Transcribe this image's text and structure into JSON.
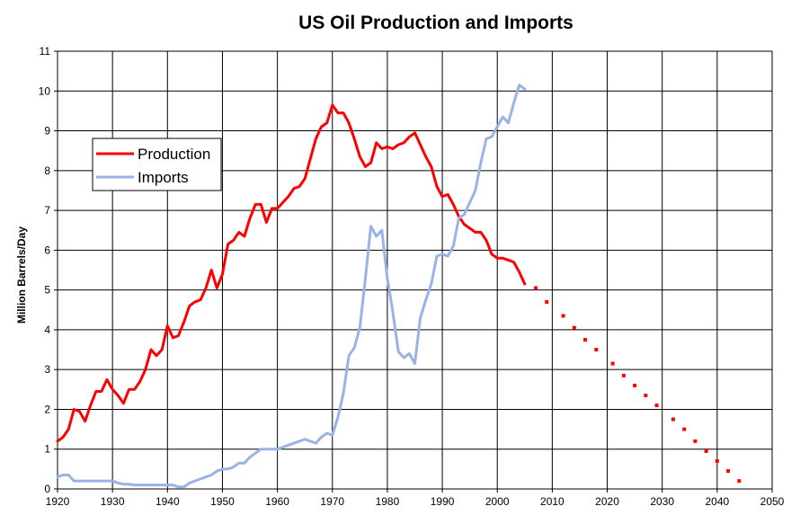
{
  "chart_data": {
    "type": "line",
    "title": "US Oil Production and Imports",
    "xlabel": "",
    "ylabel": "Million Barrels/Day",
    "xlim": [
      1920,
      2050
    ],
    "ylim": [
      0,
      11
    ],
    "xticks": [
      1920,
      1930,
      1940,
      1950,
      1960,
      1970,
      1980,
      1990,
      2000,
      2010,
      2020,
      2030,
      2040,
      2050
    ],
    "yticks": [
      0,
      1,
      2,
      3,
      4,
      5,
      6,
      7,
      8,
      9,
      10,
      11
    ],
    "grid": true,
    "legend_position": "upper-left",
    "series": [
      {
        "name": "Production",
        "color": "#ff0000",
        "style": "solid",
        "x": [
          1920,
          1921,
          1922,
          1923,
          1924,
          1925,
          1926,
          1927,
          1928,
          1929,
          1930,
          1931,
          1932,
          1933,
          1934,
          1935,
          1936,
          1937,
          1938,
          1939,
          1940,
          1941,
          1942,
          1943,
          1944,
          1945,
          1946,
          1947,
          1948,
          1949,
          1950,
          1951,
          1952,
          1953,
          1954,
          1955,
          1956,
          1957,
          1958,
          1959,
          1960,
          1961,
          1962,
          1963,
          1964,
          1965,
          1966,
          1967,
          1968,
          1969,
          1970,
          1971,
          1972,
          1973,
          1974,
          1975,
          1976,
          1977,
          1978,
          1979,
          1980,
          1981,
          1982,
          1983,
          1984,
          1985,
          1986,
          1987,
          1988,
          1989,
          1990,
          1991,
          1992,
          1993,
          1994,
          1995,
          1996,
          1997,
          1998,
          1999,
          2000,
          2001,
          2002,
          2003,
          2004,
          2005
        ],
        "values": [
          1.2,
          1.3,
          1.5,
          2.0,
          1.95,
          1.7,
          2.1,
          2.45,
          2.45,
          2.75,
          2.5,
          2.35,
          2.15,
          2.5,
          2.5,
          2.7,
          3.0,
          3.5,
          3.35,
          3.5,
          4.1,
          3.8,
          3.85,
          4.2,
          4.6,
          4.7,
          4.75,
          5.05,
          5.5,
          5.05,
          5.4,
          6.15,
          6.25,
          6.45,
          6.35,
          6.8,
          7.15,
          7.15,
          6.7,
          7.05,
          7.05,
          7.2,
          7.35,
          7.55,
          7.6,
          7.8,
          8.3,
          8.8,
          9.1,
          9.2,
          9.65,
          9.45,
          9.45,
          9.2,
          8.8,
          8.35,
          8.1,
          8.2,
          8.7,
          8.55,
          8.6,
          8.55,
          8.65,
          8.7,
          8.85,
          8.95,
          8.65,
          8.35,
          8.1,
          7.6,
          7.35,
          7.4,
          7.15,
          6.85,
          6.65,
          6.55,
          6.45,
          6.45,
          6.25,
          5.9,
          5.8,
          5.8,
          5.75,
          5.7,
          5.45,
          5.15
        ]
      },
      {
        "name": "Imports",
        "color": "#99b3e6",
        "style": "solid",
        "x": [
          1920,
          1921,
          1922,
          1923,
          1924,
          1925,
          1926,
          1927,
          1928,
          1929,
          1930,
          1931,
          1932,
          1933,
          1934,
          1935,
          1936,
          1937,
          1938,
          1939,
          1940,
          1941,
          1942,
          1943,
          1944,
          1945,
          1946,
          1947,
          1948,
          1949,
          1950,
          1951,
          1952,
          1953,
          1954,
          1955,
          1956,
          1957,
          1958,
          1959,
          1960,
          1961,
          1962,
          1963,
          1964,
          1965,
          1966,
          1967,
          1968,
          1969,
          1970,
          1971,
          1972,
          1973,
          1974,
          1975,
          1976,
          1977,
          1978,
          1979,
          1980,
          1981,
          1982,
          1983,
          1984,
          1985,
          1986,
          1987,
          1988,
          1989,
          1990,
          1991,
          1992,
          1993,
          1994,
          1995,
          1996,
          1997,
          1998,
          1999,
          2000,
          2001,
          2002,
          2003,
          2004,
          2005
        ],
        "values": [
          0.3,
          0.35,
          0.35,
          0.2,
          0.2,
          0.2,
          0.2,
          0.2,
          0.2,
          0.2,
          0.2,
          0.15,
          0.12,
          0.12,
          0.1,
          0.1,
          0.1,
          0.1,
          0.1,
          0.1,
          0.1,
          0.1,
          0.05,
          0.05,
          0.15,
          0.2,
          0.25,
          0.3,
          0.35,
          0.45,
          0.5,
          0.5,
          0.55,
          0.65,
          0.65,
          0.8,
          0.9,
          1.0,
          1.0,
          1.0,
          1.0,
          1.05,
          1.1,
          1.15,
          1.2,
          1.25,
          1.2,
          1.15,
          1.3,
          1.4,
          1.35,
          1.8,
          2.4,
          3.35,
          3.55,
          4.05,
          5.3,
          6.6,
          6.35,
          6.5,
          5.3,
          4.45,
          3.45,
          3.3,
          3.4,
          3.15,
          4.3,
          4.75,
          5.15,
          5.85,
          5.9,
          5.85,
          6.1,
          6.8,
          6.9,
          7.2,
          7.5,
          8.2,
          8.8,
          8.85,
          9.1,
          9.35,
          9.2,
          9.7,
          10.15,
          10.05
        ]
      },
      {
        "name": "",
        "color": "#ff0000",
        "style": "dotted",
        "x": [
          2007,
          2009,
          2012,
          2014,
          2016,
          2018,
          2021,
          2023,
          2025,
          2027,
          2029,
          2032,
          2034,
          2036,
          2038,
          2040,
          2042,
          2044
        ],
        "values": [
          5.05,
          4.7,
          4.35,
          4.05,
          3.75,
          3.5,
          3.15,
          2.85,
          2.6,
          2.35,
          2.1,
          1.75,
          1.5,
          1.2,
          0.95,
          0.7,
          0.45,
          0.2
        ]
      }
    ]
  }
}
